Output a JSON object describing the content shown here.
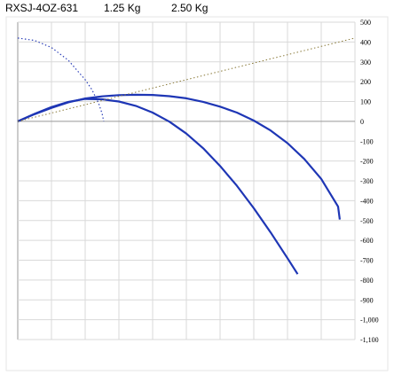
{
  "header": {
    "model": "RXSJ-4OZ-631",
    "weight_1": "1.25 Kg",
    "weight_2": "2.50 Kg"
  },
  "chart_data": {
    "type": "line",
    "title": "",
    "xlabel": "",
    "ylabel": "",
    "xlim": [
      0,
      10
    ],
    "ylim": [
      -1100,
      500
    ],
    "grid": true,
    "y_ticks": [
      "500",
      "400",
      "300",
      "200",
      "100",
      "0",
      "-100",
      "-200",
      "-300",
      "-400",
      "-500",
      "-600",
      "-700",
      "-800",
      "-900",
      "-1,000",
      "-1,100"
    ],
    "y_tick_values": [
      500,
      400,
      300,
      200,
      100,
      0,
      -100,
      -200,
      -300,
      -400,
      -500,
      -600,
      -700,
      -800,
      -900,
      -1000,
      -1100
    ],
    "x_grid_count": 10,
    "colors": {
      "trajectory": "#1e36b5",
      "sight_line": "#8a7a3a",
      "arc": "#2b3fb8",
      "grid": "#d9d9d9",
      "axis": "#999999"
    },
    "series": [
      {
        "style": "solid",
        "x": [
          0,
          0.5,
          1,
          1.5,
          2,
          2.5,
          3,
          3.5,
          4,
          4.5,
          5,
          5.5,
          6,
          6.5,
          7,
          7.5,
          8,
          8.3,
          8.3
        ],
        "y": [
          0,
          38,
          72,
          98,
          113,
          111,
          100,
          78,
          44,
          -2,
          -62,
          -136,
          -225,
          -325,
          -438,
          -560,
          -690,
          -770,
          -770
        ]
      },
      {
        "style": "solid",
        "x": [
          0,
          0.5,
          1,
          1.5,
          2,
          2.5,
          3,
          3.5,
          4,
          4.5,
          5,
          5.5,
          6,
          6.5,
          7,
          7.5,
          8,
          8.5,
          9,
          9.5,
          9.55
        ],
        "y": [
          0,
          36,
          68,
          96,
          115,
          126,
          132,
          134,
          133,
          127,
          116,
          98,
          74,
          44,
          4,
          -46,
          -110,
          -190,
          -290,
          -430,
          -495
        ]
      },
      {
        "style": "dotted",
        "x": [
          0,
          10
        ],
        "y": [
          0,
          420
        ]
      },
      {
        "style": "dotted",
        "x": [
          0,
          0.5,
          1,
          1.5,
          2,
          2.2,
          2.4,
          2.5,
          2.55
        ],
        "y": [
          420,
          408,
          372,
          308,
          210,
          160,
          90,
          40,
          0
        ]
      }
    ]
  }
}
